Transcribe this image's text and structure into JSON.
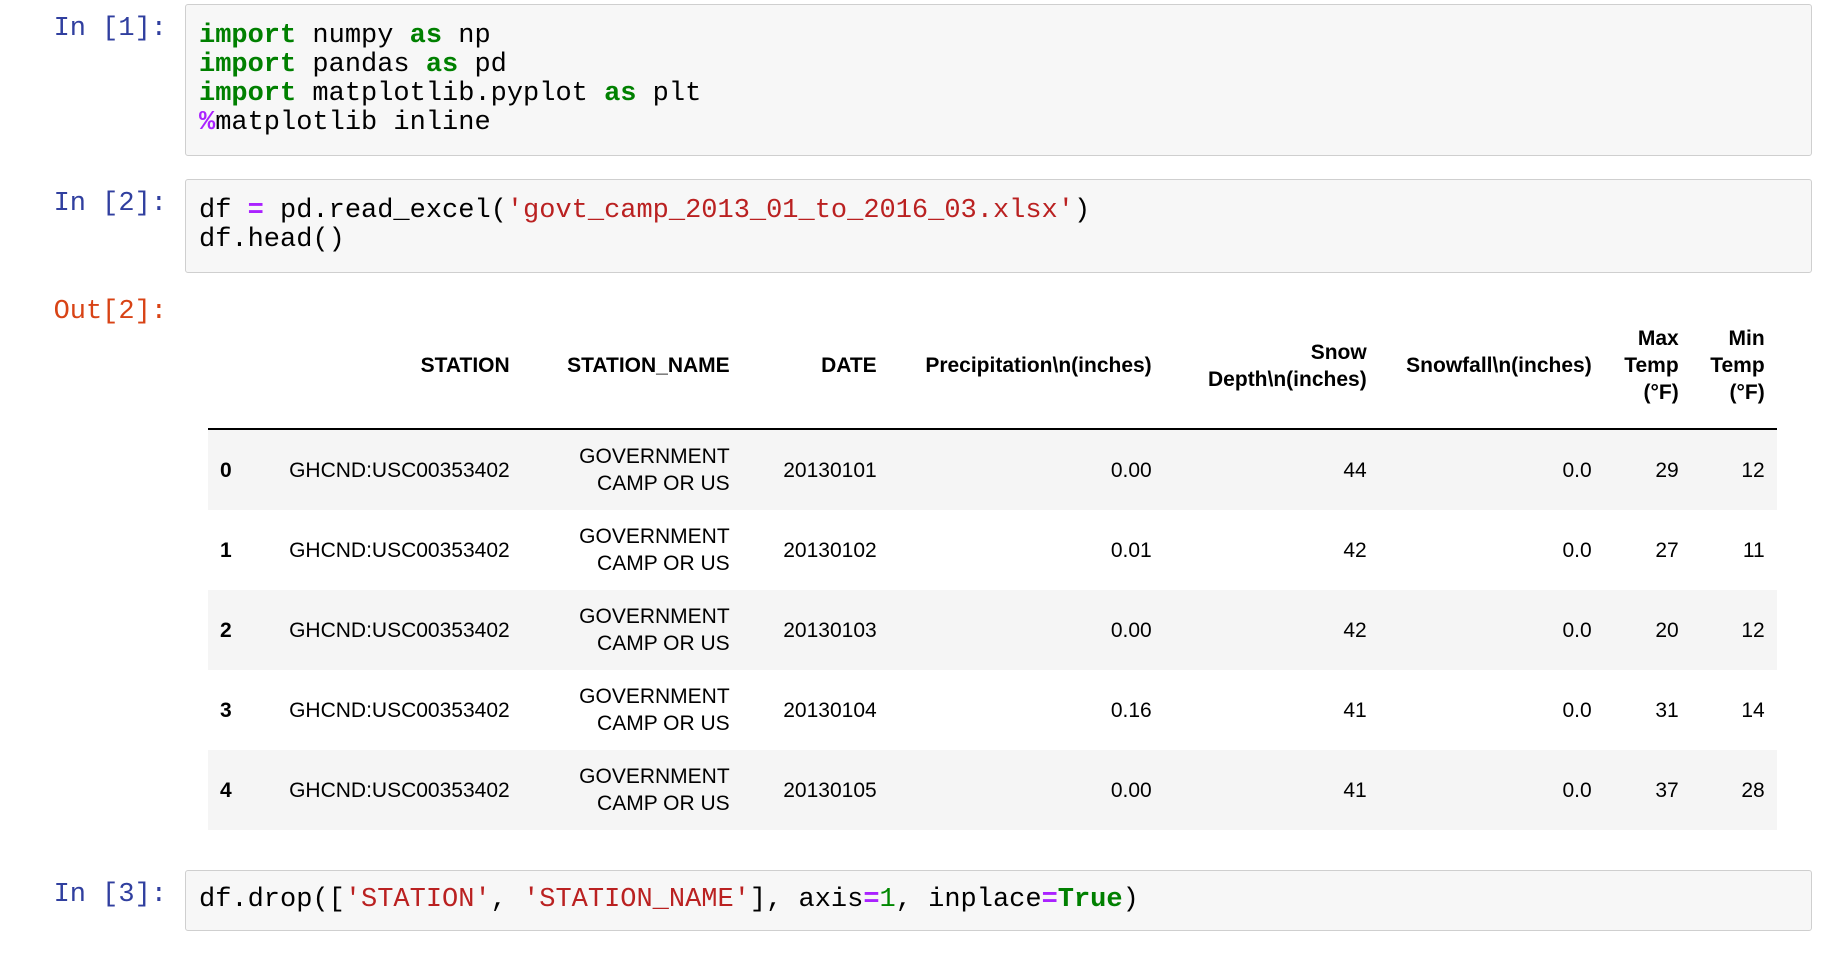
{
  "app": "jupyter-notebook",
  "syntax_colors": {
    "keyword": "#008000",
    "operator": "#AA22FF",
    "string": "#BA2121",
    "number": "#008800",
    "prompt_in": "#303F9F",
    "prompt_out": "#D84315",
    "cell_background": "#f7f7f7",
    "cell_border": "#cfcfcf",
    "row_stripe": "#f5f5f5"
  },
  "cells": [
    {
      "type": "code",
      "prompt": "In [1]:",
      "lines": [
        [
          {
            "s": "kw",
            "t": "import"
          },
          {
            "s": "",
            "t": " numpy "
          },
          {
            "s": "kw",
            "t": "as"
          },
          {
            "s": "",
            "t": " np"
          }
        ],
        [
          {
            "s": "kw",
            "t": "import"
          },
          {
            "s": "",
            "t": " pandas "
          },
          {
            "s": "kw",
            "t": "as"
          },
          {
            "s": "",
            "t": " pd"
          }
        ],
        [
          {
            "s": "kw",
            "t": "import"
          },
          {
            "s": "",
            "t": " matplotlib.pyplot "
          },
          {
            "s": "kw",
            "t": "as"
          },
          {
            "s": "",
            "t": " plt"
          }
        ],
        [
          {
            "s": "op",
            "t": "%"
          },
          {
            "s": "",
            "t": "matplotlib inline"
          }
        ]
      ]
    },
    {
      "type": "code",
      "prompt": "In [2]:",
      "lines": [
        [
          {
            "s": "",
            "t": "df "
          },
          {
            "s": "op",
            "t": "="
          },
          {
            "s": "",
            "t": " pd.read_excel("
          },
          {
            "s": "str",
            "t": "'govt_camp_2013_01_to_2016_03.xlsx'"
          },
          {
            "s": "",
            "t": ")"
          }
        ],
        [
          {
            "s": "",
            "t": "df.head()"
          }
        ]
      ]
    },
    {
      "type": "code",
      "prompt": "In [3]:",
      "lines": [
        [
          {
            "s": "",
            "t": "df.drop(["
          },
          {
            "s": "str",
            "t": "'STATION'"
          },
          {
            "s": "",
            "t": ", "
          },
          {
            "s": "str",
            "t": "'STATION_NAME'"
          },
          {
            "s": "",
            "t": "], axis"
          },
          {
            "s": "op",
            "t": "="
          },
          {
            "s": "num",
            "t": "1"
          },
          {
            "s": "",
            "t": ", inplace"
          },
          {
            "s": "op",
            "t": "="
          },
          {
            "s": "kw",
            "t": "True"
          },
          {
            "s": "",
            "t": ")"
          }
        ]
      ]
    }
  ],
  "output": {
    "prompt": "Out[2]:",
    "table": {
      "columns": [
        "",
        "STATION",
        "STATION_NAME",
        "DATE",
        "Precipitation\\n(inches)",
        "Snow Depth\\n(inches)",
        "Snowfall\\n(inches)",
        "Max Temp (°F)",
        "Min Temp (°F)"
      ],
      "rows": [
        {
          "index": "0",
          "cells": [
            "GHCND:USC00353402",
            "GOVERNMENT CAMP OR US",
            "20130101",
            "0.00",
            "44",
            "0.0",
            "29",
            "12"
          ]
        },
        {
          "index": "1",
          "cells": [
            "GHCND:USC00353402",
            "GOVERNMENT CAMP OR US",
            "20130102",
            "0.01",
            "42",
            "0.0",
            "27",
            "11"
          ]
        },
        {
          "index": "2",
          "cells": [
            "GHCND:USC00353402",
            "GOVERNMENT CAMP OR US",
            "20130103",
            "0.00",
            "42",
            "0.0",
            "20",
            "12"
          ]
        },
        {
          "index": "3",
          "cells": [
            "GHCND:USC00353402",
            "GOVERNMENT CAMP OR US",
            "20130104",
            "0.16",
            "41",
            "0.0",
            "31",
            "14"
          ]
        },
        {
          "index": "4",
          "cells": [
            "GHCND:USC00353402",
            "GOVERNMENT CAMP OR US",
            "20130105",
            "0.00",
            "41",
            "0.0",
            "37",
            "28"
          ]
        }
      ]
    }
  }
}
